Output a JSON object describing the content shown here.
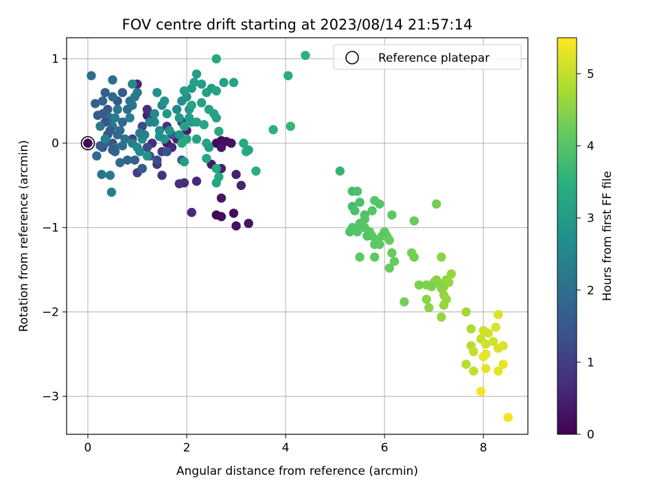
{
  "chart_data": {
    "type": "scatter",
    "title": "FOV centre drift starting at 2023/08/14 21:57:14",
    "xlabel": "Angular distance from reference (arcmin)",
    "ylabel": "Rotation from reference (arcmin)",
    "xlim": [
      -0.43,
      8.9
    ],
    "ylim": [
      -3.45,
      1.25
    ],
    "xticks": [
      0,
      2,
      4,
      6,
      8
    ],
    "yticks": [
      -3,
      -2,
      -1,
      0,
      1
    ],
    "xtick_labels": [
      "0",
      "2",
      "4",
      "6",
      "8"
    ],
    "ytick_labels": [
      "−3",
      "−2",
      "−1",
      "0",
      "1"
    ],
    "grid": true,
    "colormap": "viridis",
    "colorbar": {
      "label": "Hours from first FF file",
      "range": [
        0,
        5.5
      ],
      "ticks": [
        0,
        1,
        2,
        3,
        4,
        5
      ],
      "tick_labels": [
        "0",
        "1",
        "2",
        "3",
        "4",
        "5"
      ]
    },
    "reference": {
      "x": 0,
      "y": 0
    },
    "legend": {
      "entries": [
        "Reference platepar"
      ],
      "position": "top-right"
    },
    "series": [
      {
        "points": [
          [
            2.6,
            0.0,
            0.1
          ],
          [
            2.7,
            0.03,
            0.15
          ],
          [
            2.8,
            0.02,
            0.2
          ],
          [
            2.9,
            0.0,
            0.25
          ],
          [
            2.7,
            -0.05,
            0.3
          ],
          [
            2.6,
            -0.85,
            0.1
          ],
          [
            2.7,
            -0.87,
            0.15
          ],
          [
            2.95,
            -0.83,
            0.2
          ],
          [
            3.0,
            -0.98,
            0.25
          ],
          [
            3.25,
            -0.95,
            0.3
          ],
          [
            2.7,
            -0.65,
            0.35
          ],
          [
            2.5,
            -0.25,
            0.4
          ],
          [
            2.7,
            -0.3,
            0.45
          ],
          [
            3.0,
            -0.37,
            0.5
          ],
          [
            3.1,
            -0.5,
            0.55
          ],
          [
            2.2,
            -0.45,
            0.6
          ],
          [
            2.1,
            -0.82,
            0.65
          ],
          [
            1.95,
            -0.47,
            0.7
          ],
          [
            1.85,
            -0.48,
            0.75
          ],
          [
            1.5,
            -0.38,
            0.8
          ],
          [
            1.6,
            0.0,
            0.4
          ],
          [
            1.8,
            0.05,
            0.5
          ],
          [
            1.2,
            0.33,
            0.5
          ],
          [
            1.0,
            0.7,
            0.6
          ],
          [
            1.2,
            0.4,
            0.7
          ],
          [
            1.6,
            0.2,
            0.8
          ],
          [
            1.9,
            0.25,
            0.9
          ],
          [
            2.0,
            0.15,
            0.5
          ],
          [
            1.7,
            -0.05,
            0.6
          ],
          [
            1.3,
            0.0,
            0.7
          ],
          [
            1.4,
            -0.25,
            0.8
          ],
          [
            1.1,
            -0.3,
            0.9
          ],
          [
            1.0,
            -0.35,
            1.0
          ],
          [
            1.5,
            -0.1,
            1.0
          ],
          [
            1.3,
            0.3,
            1.1
          ],
          [
            1.1,
            0.2,
            1.2
          ],
          [
            0.9,
            0.05,
            1.1
          ],
          [
            1.2,
            -0.05,
            1.2
          ],
          [
            1.25,
            -0.15,
            1.3
          ],
          [
            1.4,
            -0.2,
            1.3
          ],
          [
            1.6,
            -0.1,
            1.4
          ],
          [
            1.7,
            0.1,
            1.5
          ],
          [
            1.9,
            -0.2,
            1.6
          ],
          [
            0.5,
            0.0,
            1.4
          ],
          [
            0.4,
            0.4,
            1.5
          ],
          [
            0.6,
            0.5,
            1.5
          ],
          [
            0.3,
            -0.05,
            1.6
          ],
          [
            0.35,
            0.0,
            1.7
          ],
          [
            0.55,
            -0.1,
            1.8
          ],
          [
            0.8,
            -0.2,
            1.8
          ],
          [
            1.1,
            -0.3,
            1.6
          ],
          [
            0.95,
            -0.2,
            1.7
          ],
          [
            0.25,
            -0.03,
            1.6
          ],
          [
            0.7,
            -0.03,
            1.9
          ],
          [
            0.55,
            -0.05,
            2.0
          ],
          [
            0.65,
            -0.23,
            1.9
          ],
          [
            0.5,
            0.2,
            2.1
          ],
          [
            0.45,
            0.3,
            2.0
          ],
          [
            0.3,
            0.5,
            1.8
          ],
          [
            0.5,
            0.55,
            1.9
          ],
          [
            0.35,
            0.6,
            1.7
          ],
          [
            0.5,
            0.75,
            2.0
          ],
          [
            0.7,
            0.6,
            1.6
          ],
          [
            0.85,
            0.5,
            2.1
          ],
          [
            0.95,
            0.55,
            2.2
          ],
          [
            0.6,
            0.4,
            2.2
          ],
          [
            0.55,
            0.3,
            2.3
          ],
          [
            0.65,
            0.15,
            2.0
          ],
          [
            0.75,
            0.05,
            2.1
          ],
          [
            0.85,
            0.3,
            2.4
          ],
          [
            0.9,
            0.0,
            2.3
          ],
          [
            0.2,
            0.33,
            1.5
          ],
          [
            0.3,
            0.35,
            1.6
          ],
          [
            0.35,
            0.25,
            1.4
          ],
          [
            0.4,
            0.1,
            1.5
          ],
          [
            0.45,
            0.15,
            1.6
          ],
          [
            0.5,
            -0.08,
            1.7
          ],
          [
            0.6,
            0.1,
            1.8
          ],
          [
            0.7,
            0.25,
            1.9
          ],
          [
            0.8,
            0.4,
            2.0
          ],
          [
            0.9,
            0.45,
            2.1
          ],
          [
            1.0,
            0.6,
            2.2
          ],
          [
            0.15,
            0.47,
            1.7
          ],
          [
            0.07,
            0.8,
            2.0
          ],
          [
            0.18,
            -0.15,
            1.9
          ],
          [
            0.28,
            -0.37,
            2.1
          ],
          [
            0.45,
            -0.38,
            2.2
          ],
          [
            0.48,
            -0.58,
            2.3
          ],
          [
            0.25,
            0.2,
            2.2
          ],
          [
            0.35,
            0.05,
            2.4
          ],
          [
            1.0,
            -0.05,
            2.5
          ],
          [
            1.05,
            -0.1,
            2.6
          ],
          [
            0.9,
            0.7,
            2.6
          ],
          [
            1.1,
            0.05,
            2.7
          ],
          [
            1.2,
            -0.15,
            2.8
          ],
          [
            1.35,
            0.25,
            2.5
          ],
          [
            1.5,
            0.45,
            2.6
          ],
          [
            1.45,
            0.15,
            2.7
          ],
          [
            1.4,
            0.6,
            2.7
          ],
          [
            1.55,
            0.5,
            2.8
          ],
          [
            1.6,
            0.35,
            2.9
          ],
          [
            1.8,
            0.4,
            2.6
          ],
          [
            1.9,
            0.5,
            2.7
          ],
          [
            2.0,
            0.55,
            2.8
          ],
          [
            2.05,
            0.4,
            2.9
          ],
          [
            2.1,
            0.65,
            2.9
          ],
          [
            2.2,
            0.82,
            3.0
          ],
          [
            2.3,
            0.7,
            3.0
          ],
          [
            2.4,
            0.6,
            3.1
          ],
          [
            2.5,
            0.65,
            3.0
          ],
          [
            2.3,
            0.48,
            3.1
          ],
          [
            2.45,
            0.4,
            3.1
          ],
          [
            2.55,
            0.35,
            3.2
          ],
          [
            2.6,
            0.3,
            3.1
          ],
          [
            2.1,
            0.25,
            3.0
          ],
          [
            2.2,
            0.25,
            3.1
          ],
          [
            2.35,
            0.22,
            3.2
          ],
          [
            2.4,
            0.0,
            3.2
          ],
          [
            2.45,
            -0.05,
            3.0
          ],
          [
            2.2,
            0.05,
            3.1
          ],
          [
            2.0,
            0.05,
            3.2
          ],
          [
            1.9,
            0.0,
            3.3
          ],
          [
            1.95,
            -0.22,
            3.0
          ],
          [
            2.4,
            -0.18,
            3.2
          ],
          [
            2.6,
            -0.3,
            3.3
          ],
          [
            2.65,
            -0.4,
            3.3
          ],
          [
            2.6,
            -0.47,
            3.2
          ],
          [
            2.65,
            0.14,
            3.3
          ],
          [
            2.75,
            0.72,
            3.1
          ],
          [
            2.6,
            0.62,
            3.2
          ],
          [
            2.95,
            0.72,
            3.2
          ],
          [
            2.6,
            1.0,
            3.3
          ],
          [
            3.15,
            0.0,
            3.3
          ],
          [
            3.2,
            -0.1,
            3.4
          ],
          [
            3.25,
            -0.08,
            3.3
          ],
          [
            3.4,
            -0.33,
            3.4
          ],
          [
            3.75,
            0.16,
            3.5
          ],
          [
            4.05,
            0.8,
            3.4
          ],
          [
            4.1,
            0.2,
            3.6
          ],
          [
            4.4,
            1.04,
            3.5
          ],
          [
            1.85,
            0.1,
            2.8
          ],
          [
            1.95,
            0.2,
            3.1
          ],
          [
            2.05,
            0.3,
            3.0
          ],
          [
            2.1,
            0.45,
            3.2
          ],
          [
            1.95,
            0.62,
            3.0
          ],
          [
            2.15,
            0.72,
            3.1
          ],
          [
            1.85,
            0.3,
            2.9
          ],
          [
            1.65,
            0.15,
            2.8
          ],
          [
            1.55,
            0.05,
            2.9
          ],
          [
            1.45,
            0.08,
            2.7
          ],
          [
            1.35,
            0.35,
            2.6
          ],
          [
            1.25,
            0.25,
            2.5
          ],
          [
            1.15,
            0.1,
            2.4
          ],
          [
            1.05,
            0.12,
            2.3
          ],
          [
            5.1,
            -0.33,
            3.6
          ],
          [
            5.35,
            -0.57,
            3.8
          ],
          [
            5.45,
            -0.57,
            3.9
          ],
          [
            5.35,
            -0.75,
            3.8
          ],
          [
            5.5,
            -0.7,
            3.9
          ],
          [
            5.4,
            -0.8,
            3.9
          ],
          [
            5.6,
            -0.85,
            3.9
          ],
          [
            5.8,
            -0.68,
            4.0
          ],
          [
            5.9,
            -0.72,
            4.0
          ],
          [
            5.75,
            -0.8,
            4.0
          ],
          [
            5.6,
            -0.9,
            4.0
          ],
          [
            5.5,
            -0.95,
            4.0
          ],
          [
            5.35,
            -1.0,
            4.0
          ],
          [
            5.3,
            -1.05,
            3.9
          ],
          [
            5.45,
            -1.05,
            4.0
          ],
          [
            5.6,
            -1.0,
            4.0
          ],
          [
            5.7,
            -1.05,
            4.1
          ],
          [
            5.75,
            -1.1,
            4.1
          ],
          [
            5.85,
            -1.15,
            4.1
          ],
          [
            5.9,
            -1.2,
            4.1
          ],
          [
            5.95,
            -1.1,
            4.1
          ],
          [
            6.05,
            -1.1,
            4.2
          ],
          [
            6.1,
            -1.15,
            4.2
          ],
          [
            6.15,
            -1.3,
            4.2
          ],
          [
            6.2,
            -1.4,
            4.2
          ],
          [
            6.1,
            -1.48,
            4.2
          ],
          [
            5.5,
            -1.35,
            4.1
          ],
          [
            5.8,
            -1.35,
            4.1
          ],
          [
            5.8,
            -1.2,
            4.1
          ],
          [
            5.65,
            -1.1,
            4.0
          ],
          [
            6.0,
            -1.05,
            4.1
          ],
          [
            6.15,
            -0.85,
            4.1
          ],
          [
            6.6,
            -0.92,
            4.2
          ],
          [
            7.05,
            -0.72,
            4.3
          ],
          [
            6.55,
            -1.3,
            4.3
          ],
          [
            6.6,
            -1.35,
            4.3
          ],
          [
            6.4,
            -1.88,
            4.3
          ],
          [
            6.7,
            -1.68,
            4.4
          ],
          [
            6.85,
            -1.68,
            4.4
          ],
          [
            6.95,
            -1.7,
            4.4
          ],
          [
            7.0,
            -1.65,
            4.4
          ],
          [
            7.05,
            -1.62,
            4.5
          ],
          [
            7.1,
            -1.66,
            4.5
          ],
          [
            7.15,
            -1.72,
            4.5
          ],
          [
            7.2,
            -1.7,
            4.5
          ],
          [
            7.25,
            -1.62,
            4.5
          ],
          [
            7.35,
            -1.55,
            4.6
          ],
          [
            7.3,
            -1.65,
            4.6
          ],
          [
            7.2,
            -1.8,
            4.6
          ],
          [
            7.25,
            -1.85,
            4.6
          ],
          [
            7.2,
            -1.92,
            4.6
          ],
          [
            7.15,
            -2.06,
            4.6
          ],
          [
            6.85,
            -1.85,
            4.5
          ],
          [
            6.9,
            -1.95,
            4.5
          ],
          [
            7.15,
            -1.35,
            4.5
          ],
          [
            7.65,
            -2.0,
            4.7
          ],
          [
            7.75,
            -2.2,
            4.8
          ],
          [
            7.65,
            -2.62,
            4.9
          ],
          [
            7.75,
            -2.4,
            4.9
          ],
          [
            7.8,
            -2.47,
            5.0
          ],
          [
            7.8,
            -2.7,
            5.0
          ],
          [
            7.95,
            -2.32,
            5.0
          ],
          [
            8.0,
            -2.22,
            5.1
          ],
          [
            8.05,
            -2.38,
            5.1
          ],
          [
            8.1,
            -2.25,
            5.1
          ],
          [
            8.2,
            -2.35,
            5.1
          ],
          [
            8.25,
            -2.18,
            5.2
          ],
          [
            8.3,
            -2.03,
            5.2
          ],
          [
            8.3,
            -2.43,
            5.2
          ],
          [
            8.4,
            -2.4,
            5.2
          ],
          [
            8.4,
            -2.62,
            5.3
          ],
          [
            8.3,
            -2.7,
            5.3
          ],
          [
            8.05,
            -2.5,
            5.3
          ],
          [
            8.0,
            -2.53,
            5.3
          ],
          [
            8.05,
            -2.67,
            5.3
          ],
          [
            7.95,
            -2.94,
            5.4
          ],
          [
            8.5,
            -3.25,
            5.4
          ]
        ]
      }
    ]
  }
}
